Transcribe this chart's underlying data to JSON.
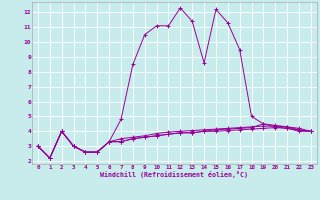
{
  "xlabel": "Windchill (Refroidissement éolien,°C)",
  "background_color": "#c8ecec",
  "grid_color": "#ffffff",
  "line_color": "#990099",
  "xlim": [
    -0.5,
    23.5
  ],
  "ylim": [
    1.8,
    12.7
  ],
  "xticks": [
    0,
    1,
    2,
    3,
    4,
    5,
    6,
    7,
    8,
    9,
    10,
    11,
    12,
    13,
    14,
    15,
    16,
    17,
    18,
    19,
    20,
    21,
    22,
    23
  ],
  "yticks": [
    2,
    3,
    4,
    5,
    6,
    7,
    8,
    9,
    10,
    11,
    12
  ],
  "series": [
    [
      3.0,
      2.2,
      4.0,
      3.0,
      2.6,
      2.6,
      3.3,
      4.8,
      8.5,
      10.5,
      11.1,
      11.1,
      12.3,
      11.4,
      8.6,
      12.2,
      11.3,
      9.5,
      5.0,
      4.5,
      4.3,
      4.2,
      4.0,
      4.0
    ],
    [
      3.0,
      2.2,
      4.0,
      3.0,
      2.6,
      2.6,
      3.3,
      3.3,
      3.5,
      3.6,
      3.7,
      3.8,
      3.9,
      3.9,
      4.0,
      4.1,
      4.15,
      4.2,
      4.25,
      4.5,
      4.4,
      4.3,
      4.1,
      4.0
    ],
    [
      3.0,
      2.2,
      4.0,
      3.0,
      2.6,
      2.6,
      3.3,
      3.5,
      3.6,
      3.7,
      3.85,
      3.95,
      4.0,
      4.05,
      4.1,
      4.15,
      4.2,
      4.25,
      4.3,
      4.35,
      4.35,
      4.3,
      4.2,
      4.0
    ],
    [
      3.0,
      2.2,
      4.0,
      3.0,
      2.6,
      2.6,
      3.3,
      3.3,
      3.5,
      3.6,
      3.7,
      3.8,
      3.9,
      3.9,
      4.0,
      4.0,
      4.05,
      4.1,
      4.15,
      4.2,
      4.25,
      4.2,
      4.1,
      4.0
    ]
  ]
}
